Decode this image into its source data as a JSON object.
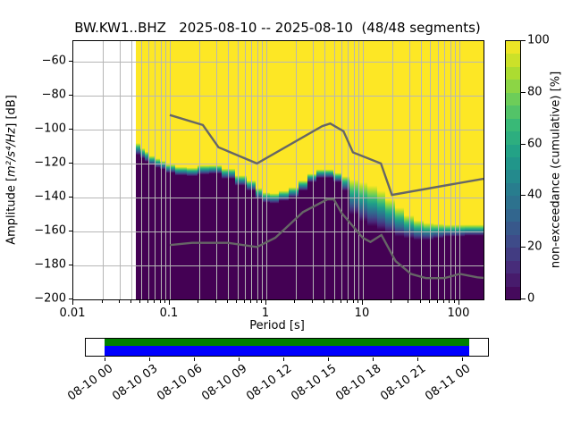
{
  "title": "BW.KW1..BHZ   2025-08-10 -- 2025-08-10  (48/48 segments)",
  "axes": {
    "ylabel_prefix": "Amplitude [",
    "ylabel_math": "m²/s⁴/Hz",
    "ylabel_suffix": "] [dB]",
    "xlabel": "Period [s]",
    "ytick_labels": [
      "−60",
      "−80",
      "−100",
      "−120",
      "−140",
      "−160",
      "−180",
      "−200"
    ],
    "xtick_labels": [
      "0.01",
      "0.1",
      "1",
      "10",
      "100"
    ]
  },
  "colorbar_ui": {
    "label": "non-exceedance (cumulative) [%]",
    "tick_labels": [
      "0",
      "20",
      "40",
      "60",
      "80",
      "100"
    ]
  },
  "timeline": {
    "tick_labels": [
      "08-10 00",
      "08-10 03",
      "08-10 06",
      "08-10 09",
      "08-10 12",
      "08-10 15",
      "08-10 18",
      "08-10 21",
      "08-11 00"
    ],
    "coverage_bar_top_color": "#008000",
    "coverage_bar_bottom_color": "#0000ff"
  },
  "chart_data": {
    "type": "heatmap",
    "subtype": "ppsd-cumulative-spectral-histogram",
    "title": "BW.KW1..BHZ   2025-08-10 -- 2025-08-10  (48/48 segments)",
    "xlabel": "Period [s]",
    "ylabel": "Amplitude [m^2/s^4/Hz] [dB]",
    "xscale": "log",
    "xlim": [
      0.01,
      178
    ],
    "ylim": [
      -200,
      -48
    ],
    "xticks": [
      0.01,
      0.1,
      1,
      10,
      100
    ],
    "yticks": [
      -60,
      -80,
      -100,
      -120,
      -140,
      -160,
      -180,
      -200
    ],
    "grid": true,
    "grid_color": "#b6b6b6",
    "colorbar": {
      "label": "non-exceedance (cumulative) [%]",
      "min": 0,
      "max": 100,
      "ticks": [
        0,
        20,
        40,
        60,
        80,
        100
      ],
      "steps": 20,
      "colormap": "viridis",
      "viridis_anchors": [
        "#440154",
        "#482878",
        "#3e4a89",
        "#31688e",
        "#26828e",
        "#1f9e89",
        "#35b779",
        "#6ece58",
        "#b5de2b",
        "#fde725"
      ]
    },
    "histogram": {
      "note": "cumulative non-exceedance per period column: 0% (dark purple) below db_at_0pct, ramps through viridis to 100% (yellow) above db_at_100pct",
      "period_edge_range_s": [
        0.0445,
        178
      ],
      "periods_s": [
        0.047,
        0.052,
        0.058,
        0.065,
        0.075,
        0.085,
        0.1,
        0.13,
        0.17,
        0.22,
        0.3,
        0.4,
        0.55,
        0.7,
        0.85,
        1.0,
        1.2,
        1.5,
        1.9,
        2.4,
        3.0,
        3.7,
        4.5,
        5.5,
        6.5,
        8.0,
        10.0,
        12.5,
        15.5,
        19.0,
        24.0,
        30.0,
        38.0,
        48.0,
        60.0,
        78.0,
        100.0,
        130.0,
        165.0
      ],
      "db_at_0pct": [
        -115,
        -117,
        -119,
        -121,
        -122.5,
        -123.5,
        -125.5,
        -127,
        -127.5,
        -126.5,
        -126,
        -129,
        -133,
        -136,
        -141,
        -143,
        -143.5,
        -142,
        -140,
        -136,
        -131,
        -128.5,
        -128.5,
        -131,
        -136,
        -150,
        -154,
        -157,
        -159,
        -161,
        -163,
        -164,
        -165,
        -165,
        -164,
        -163,
        -163,
        -162.5,
        -162.5
      ],
      "db_at_100pct": [
        -108,
        -111,
        -113,
        -115.5,
        -117,
        -118.5,
        -120.5,
        -122,
        -122.5,
        -121,
        -121,
        -123,
        -127,
        -130,
        -134.5,
        -137,
        -137.5,
        -136,
        -134,
        -130,
        -126,
        -123.5,
        -123.5,
        -125.5,
        -127.5,
        -129.5,
        -131,
        -133,
        -136,
        -141,
        -146,
        -150.5,
        -153.5,
        -155,
        -155.5,
        -156,
        -156,
        -156,
        -156
      ]
    },
    "noise_models": {
      "color": "#666666",
      "high_noise_model": {
        "periods_s": [
          0.1,
          0.22,
          0.32,
          0.8,
          3.8,
          4.6,
          6.3,
          7.9,
          15.4,
          20.0,
          178.0
        ],
        "db": [
          -91.5,
          -97.4,
          -110.5,
          -120.0,
          -98.0,
          -96.5,
          -101.0,
          -113.5,
          -120.0,
          -138.5,
          -129.0
        ]
      },
      "low_noise_model": {
        "periods_s": [
          0.1,
          0.17,
          0.4,
          0.8,
          1.24,
          2.4,
          4.3,
          5.0,
          6.0,
          10.0,
          12.0,
          15.6,
          21.9,
          31.6,
          45.0,
          70.0,
          101.0,
          154.0,
          178.0
        ],
        "db": [
          -168.0,
          -166.7,
          -166.7,
          -169.2,
          -163.7,
          -148.6,
          -141.1,
          -141.1,
          -149.0,
          -163.8,
          -166.2,
          -162.1,
          -177.5,
          -185.0,
          -187.5,
          -187.5,
          -185.0,
          -187.0,
          -187.3
        ]
      }
    }
  }
}
